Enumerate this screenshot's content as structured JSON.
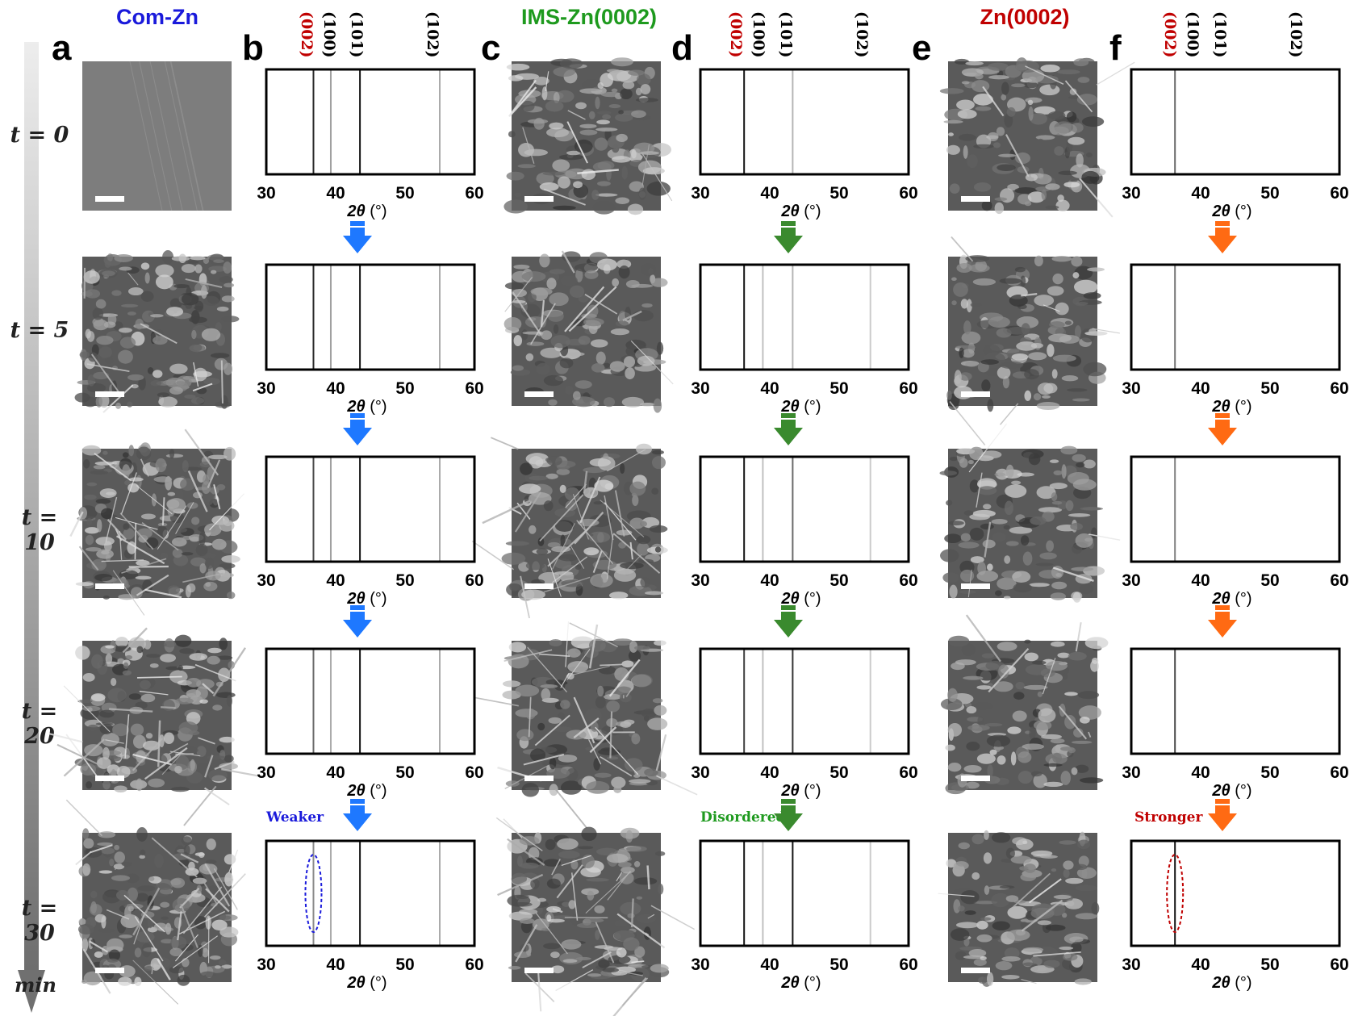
{
  "columns": [
    {
      "id": "com",
      "title": "Com-Zn",
      "color": "#1a1adb"
    },
    {
      "id": "ims",
      "title": "IMS-Zn(0002)",
      "color": "#1e9a1e"
    },
    {
      "id": "zn",
      "title": "Zn(0002)",
      "color": "#c00000"
    }
  ],
  "panel_letters": [
    "a",
    "b",
    "c",
    "d",
    "e",
    "f"
  ],
  "time_labels": [
    "t = 0",
    "t = 5",
    "t = 10",
    "t = 20",
    "t = 30"
  ],
  "time_unit": "min",
  "peak_labels": [
    {
      "text": "(002)",
      "color": "#c00000"
    },
    {
      "text": "(100)",
      "color": "#000000"
    },
    {
      "text": "(101)",
      "color": "#000000"
    },
    {
      "text": "(102)",
      "color": "#000000"
    }
  ],
  "annotations": [
    {
      "text": "Weaker",
      "color": "#1a1adb"
    },
    {
      "text": "Disordered",
      "color": "#1e9a1e"
    },
    {
      "text": "Stronger",
      "color": "#c00000"
    }
  ],
  "arrow_colors": [
    "#1e78ff",
    "#3a8a2e",
    "#ff6a13"
  ],
  "chart_data": [
    {
      "type": "stick",
      "panel": "b",
      "time": "t = 0",
      "xlabel": "2θ (°)",
      "xlim": [
        30,
        60
      ],
      "xticks": [
        30,
        40,
        50,
        60
      ],
      "peaks": [
        {
          "hkl": "(002)",
          "x": 36.8,
          "intensity": 0.9
        },
        {
          "hkl": "(100)",
          "x": 39.3,
          "intensity": 0.35
        },
        {
          "hkl": "(101)",
          "x": 43.5,
          "intensity": 1.0
        },
        {
          "hkl": "(102)",
          "x": 55.0,
          "intensity": 0.3
        }
      ]
    },
    {
      "type": "stick",
      "panel": "b",
      "time": "t = 5",
      "xlabel": "2θ (°)",
      "xlim": [
        30,
        60
      ],
      "xticks": [
        30,
        40,
        50,
        60
      ],
      "peaks": [
        {
          "hkl": "(002)",
          "x": 36.8,
          "intensity": 0.9
        },
        {
          "hkl": "(100)",
          "x": 39.3,
          "intensity": 0.35
        },
        {
          "hkl": "(101)",
          "x": 43.5,
          "intensity": 1.0
        },
        {
          "hkl": "(102)",
          "x": 55.0,
          "intensity": 0.3
        }
      ]
    },
    {
      "type": "stick",
      "panel": "b",
      "time": "t = 10",
      "xlabel": "2θ (°)",
      "xlim": [
        30,
        60
      ],
      "xticks": [
        30,
        40,
        50,
        60
      ],
      "peaks": [
        {
          "hkl": "(002)",
          "x": 36.8,
          "intensity": 0.75
        },
        {
          "hkl": "(100)",
          "x": 39.3,
          "intensity": 0.35
        },
        {
          "hkl": "(101)",
          "x": 43.5,
          "intensity": 1.0
        },
        {
          "hkl": "(102)",
          "x": 55.0,
          "intensity": 0.3
        }
      ]
    },
    {
      "type": "stick",
      "panel": "b",
      "time": "t = 20",
      "xlabel": "2θ (°)",
      "xlim": [
        30,
        60
      ],
      "xticks": [
        30,
        40,
        50,
        60
      ],
      "peaks": [
        {
          "hkl": "(002)",
          "x": 36.8,
          "intensity": 0.6
        },
        {
          "hkl": "(100)",
          "x": 39.3,
          "intensity": 0.3
        },
        {
          "hkl": "(101)",
          "x": 43.5,
          "intensity": 1.0
        },
        {
          "hkl": "(102)",
          "x": 55.0,
          "intensity": 0.3
        }
      ]
    },
    {
      "type": "stick",
      "panel": "b",
      "time": "t = 30",
      "xlabel": "2θ (°)",
      "xlim": [
        30,
        60
      ],
      "xticks": [
        30,
        40,
        50,
        60
      ],
      "peaks": [
        {
          "hkl": "(002)",
          "x": 36.8,
          "intensity": 0.45
        },
        {
          "hkl": "(100)",
          "x": 39.3,
          "intensity": 0.3
        },
        {
          "hkl": "(101)",
          "x": 43.5,
          "intensity": 1.0
        },
        {
          "hkl": "(102)",
          "x": 55.0,
          "intensity": 0.3
        }
      ],
      "highlight": {
        "text": "Weaker",
        "hkl": "(002)"
      }
    },
    {
      "type": "stick",
      "panel": "d",
      "time": "t = 0",
      "xlabel": "2θ (°)",
      "xlim": [
        30,
        60
      ],
      "xticks": [
        30,
        40,
        50,
        60
      ],
      "peaks": [
        {
          "hkl": "(002)",
          "x": 36.3,
          "intensity": 1.0
        },
        {
          "hkl": "(101)",
          "x": 43.3,
          "intensity": 0.25
        }
      ]
    },
    {
      "type": "stick",
      "panel": "d",
      "time": "t = 5",
      "xlabel": "2θ (°)",
      "xlim": [
        30,
        60
      ],
      "xticks": [
        30,
        40,
        50,
        60
      ],
      "peaks": [
        {
          "hkl": "(002)",
          "x": 36.3,
          "intensity": 1.0
        },
        {
          "hkl": "(100)",
          "x": 39.0,
          "intensity": 0.2
        },
        {
          "hkl": "(101)",
          "x": 43.3,
          "intensity": 0.25
        },
        {
          "hkl": "(102)",
          "x": 54.5,
          "intensity": 0.15
        }
      ]
    },
    {
      "type": "stick",
      "panel": "d",
      "time": "t = 10",
      "xlabel": "2θ (°)",
      "xlim": [
        30,
        60
      ],
      "xticks": [
        30,
        40,
        50,
        60
      ],
      "peaks": [
        {
          "hkl": "(002)",
          "x": 36.3,
          "intensity": 1.0
        },
        {
          "hkl": "(100)",
          "x": 39.0,
          "intensity": 0.2
        },
        {
          "hkl": "(101)",
          "x": 43.3,
          "intensity": 0.6
        },
        {
          "hkl": "(102)",
          "x": 54.5,
          "intensity": 0.15
        }
      ]
    },
    {
      "type": "stick",
      "panel": "d",
      "time": "t = 20",
      "xlabel": "2θ (°)",
      "xlim": [
        30,
        60
      ],
      "xticks": [
        30,
        40,
        50,
        60
      ],
      "peaks": [
        {
          "hkl": "(002)",
          "x": 36.3,
          "intensity": 0.8
        },
        {
          "hkl": "(100)",
          "x": 39.0,
          "intensity": 0.2
        },
        {
          "hkl": "(101)",
          "x": 43.3,
          "intensity": 0.85
        },
        {
          "hkl": "(102)",
          "x": 54.5,
          "intensity": 0.15
        }
      ]
    },
    {
      "type": "stick",
      "panel": "d",
      "time": "t = 30",
      "xlabel": "2θ (°)",
      "xlim": [
        30,
        60
      ],
      "xticks": [
        30,
        40,
        50,
        60
      ],
      "peaks": [
        {
          "hkl": "(002)",
          "x": 36.3,
          "intensity": 1.0
        },
        {
          "hkl": "(100)",
          "x": 39.0,
          "intensity": 0.2
        },
        {
          "hkl": "(101)",
          "x": 43.3,
          "intensity": 1.0
        },
        {
          "hkl": "(102)",
          "x": 54.5,
          "intensity": 0.15
        }
      ],
      "highlight": {
        "text": "Disordered"
      }
    },
    {
      "type": "stick",
      "panel": "f",
      "time": "t = 0",
      "xlabel": "2θ (°)",
      "xlim": [
        30,
        60
      ],
      "xticks": [
        30,
        40,
        50,
        60
      ],
      "peaks": [
        {
          "hkl": "(002)",
          "x": 36.3,
          "intensity": 0.6
        }
      ]
    },
    {
      "type": "stick",
      "panel": "f",
      "time": "t = 5",
      "xlabel": "2θ (°)",
      "xlim": [
        30,
        60
      ],
      "xticks": [
        30,
        40,
        50,
        60
      ],
      "peaks": [
        {
          "hkl": "(002)",
          "x": 36.3,
          "intensity": 0.55
        }
      ]
    },
    {
      "type": "stick",
      "panel": "f",
      "time": "t = 10",
      "xlabel": "2θ (°)",
      "xlim": [
        30,
        60
      ],
      "xticks": [
        30,
        40,
        50,
        60
      ],
      "peaks": [
        {
          "hkl": "(002)",
          "x": 36.3,
          "intensity": 0.5
        }
      ]
    },
    {
      "type": "stick",
      "panel": "f",
      "time": "t = 20",
      "xlabel": "2θ (°)",
      "xlim": [
        30,
        60
      ],
      "xticks": [
        30,
        40,
        50,
        60
      ],
      "peaks": [
        {
          "hkl": "(002)",
          "x": 36.3,
          "intensity": 0.75
        }
      ]
    },
    {
      "type": "stick",
      "panel": "f",
      "time": "t = 30",
      "xlabel": "2θ (°)",
      "xlim": [
        30,
        60
      ],
      "xticks": [
        30,
        40,
        50,
        60
      ],
      "peaks": [
        {
          "hkl": "(002)",
          "x": 36.3,
          "intensity": 1.0
        }
      ],
      "highlight": {
        "text": "Stronger",
        "hkl": "(002)"
      }
    }
  ]
}
